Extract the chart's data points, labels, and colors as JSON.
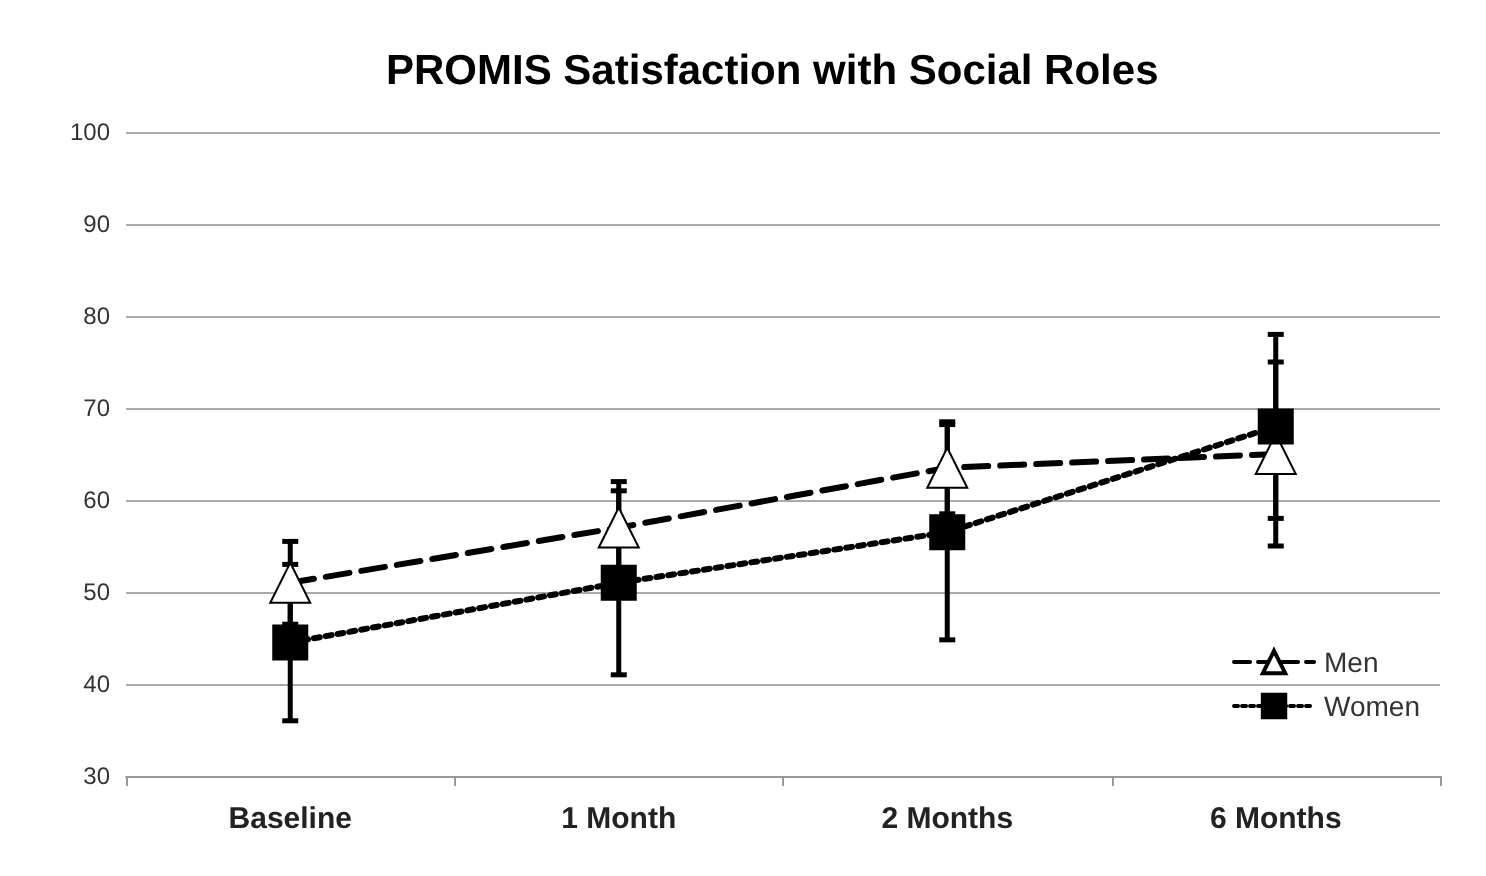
{
  "chart_data": {
    "type": "line",
    "title": "PROMIS Satisfaction with Social Roles",
    "categories": [
      "Baseline",
      "1 Month",
      "2 Months",
      "6 Months"
    ],
    "series": [
      {
        "name": "Men",
        "color": "#000000",
        "marker": "triangle",
        "line_style": "dashed",
        "values": [
          51,
          57,
          63.5,
          65
        ],
        "errors": [
          4.5,
          5,
          5,
          10
        ]
      },
      {
        "name": "Women",
        "color": "#000000",
        "marker": "square",
        "line_style": "dotted",
        "values": [
          44.5,
          51,
          56.5,
          68
        ],
        "errors": [
          8.5,
          10,
          11.7,
          10
        ]
      }
    ],
    "ylim": [
      30,
      100
    ],
    "yticks": [
      30,
      40,
      50,
      60,
      70,
      80,
      90,
      100
    ],
    "grid": "y",
    "legend": "bottom right"
  }
}
